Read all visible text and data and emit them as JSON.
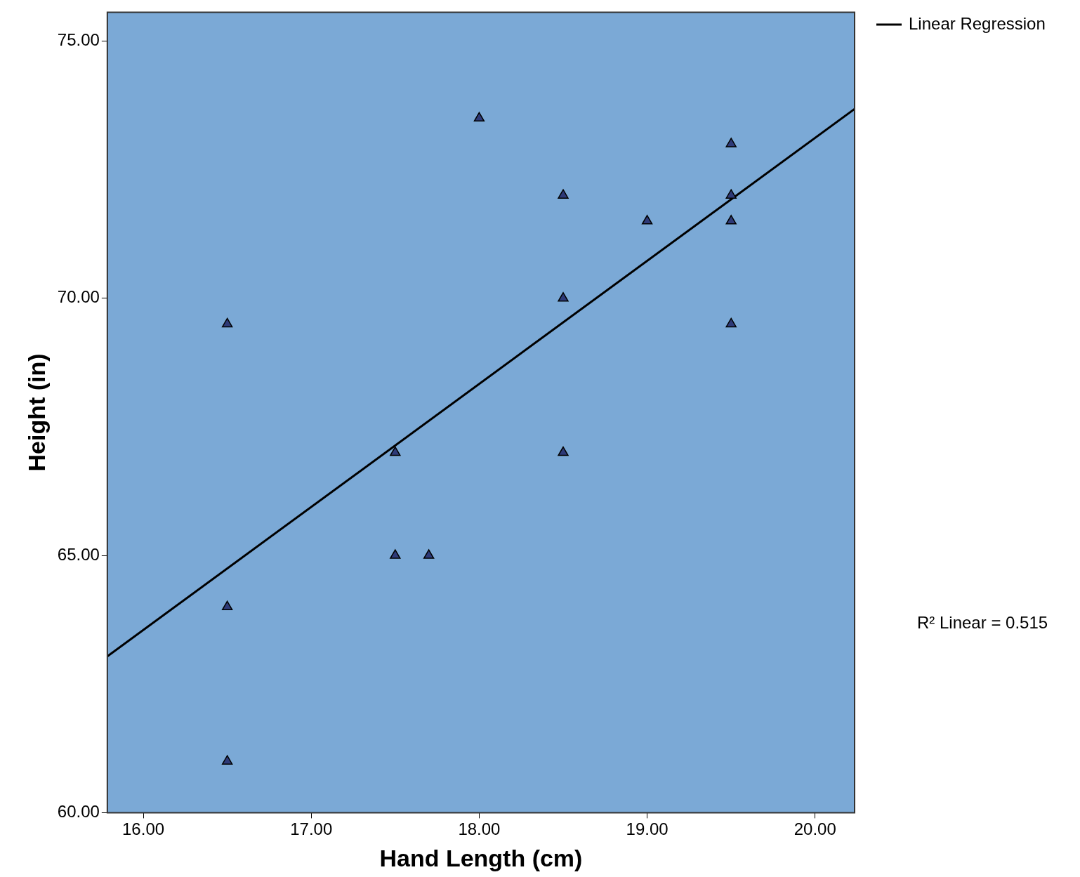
{
  "chart_data": {
    "type": "scatter",
    "xlabel": "Hand Length (cm)",
    "ylabel": "Height (in)",
    "xlim": [
      15.786,
      20.235
    ],
    "ylim": [
      60,
      75.56
    ],
    "xticks": [
      {
        "value": 16,
        "label": "16.00"
      },
      {
        "value": 17,
        "label": "17.00"
      },
      {
        "value": 18,
        "label": "18.00"
      },
      {
        "value": 19,
        "label": "19.00"
      },
      {
        "value": 20,
        "label": "20.00"
      }
    ],
    "yticks": [
      {
        "value": 60,
        "label": "60.00"
      },
      {
        "value": 65,
        "label": "65.00"
      },
      {
        "value": 70,
        "label": "70.00"
      },
      {
        "value": 75,
        "label": "75.00"
      }
    ],
    "grid": false,
    "legend": "top right",
    "series": [
      {
        "type": "scatter",
        "marker": "triangle",
        "color": "#2e3a78",
        "x": [
          16.5,
          16.5,
          16.5,
          17.5,
          17.5,
          17.7,
          18,
          18.5,
          18.5,
          18.5,
          19,
          19.5,
          19.5,
          19.5,
          19.5
        ],
        "values": [
          69.5,
          64,
          61,
          67,
          65,
          65,
          73.5,
          72,
          70,
          67,
          71.5,
          73,
          72,
          71.5,
          69.5
        ]
      },
      {
        "type": "line",
        "marker": "none",
        "name": "Linear Regression",
        "color": "#000000",
        "x": [
          15.786,
          20.235
        ],
        "values": [
          63.04,
          73.68
        ]
      }
    ],
    "annotations": [
      "R² Linear = 0.515"
    ]
  }
}
